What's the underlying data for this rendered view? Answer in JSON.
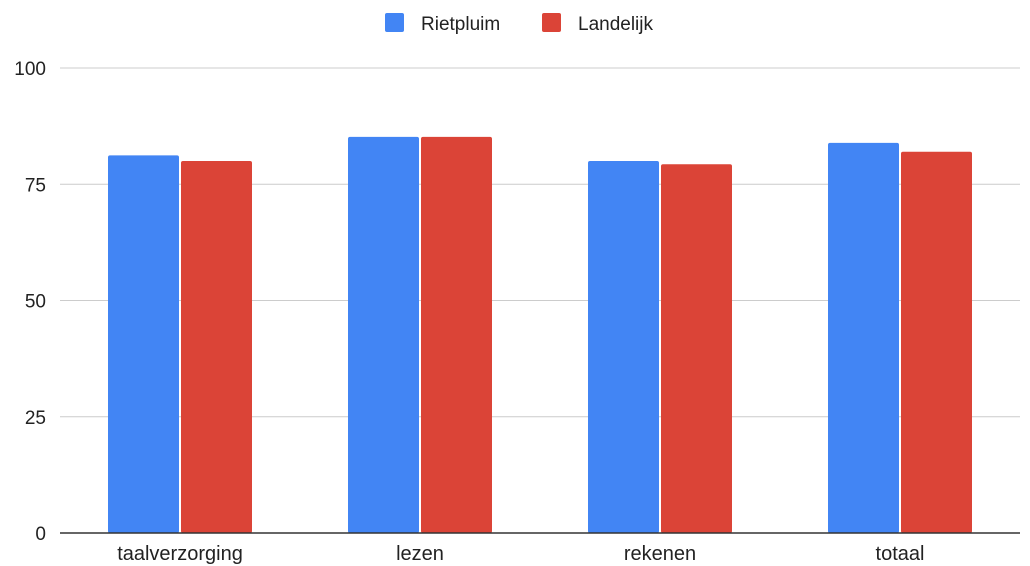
{
  "chart_data": {
    "type": "bar",
    "categories": [
      "taalverzorging",
      "lezen",
      "rekenen",
      "totaal"
    ],
    "series": [
      {
        "name": "Rietpluim",
        "values": [
          81.2,
          85.2,
          80.0,
          83.9
        ],
        "color": "#4285f4"
      },
      {
        "name": "Landelijk",
        "values": [
          80.0,
          85.2,
          79.3,
          82.0
        ],
        "color": "#db4437"
      }
    ],
    "y_ticks": [
      "0",
      "25",
      "50",
      "75",
      "100"
    ],
    "ylim": [
      0,
      100
    ],
    "grid": true,
    "legend_position": "top-center",
    "gridline_color": "#cccccc",
    "axis_color": "#333333"
  }
}
